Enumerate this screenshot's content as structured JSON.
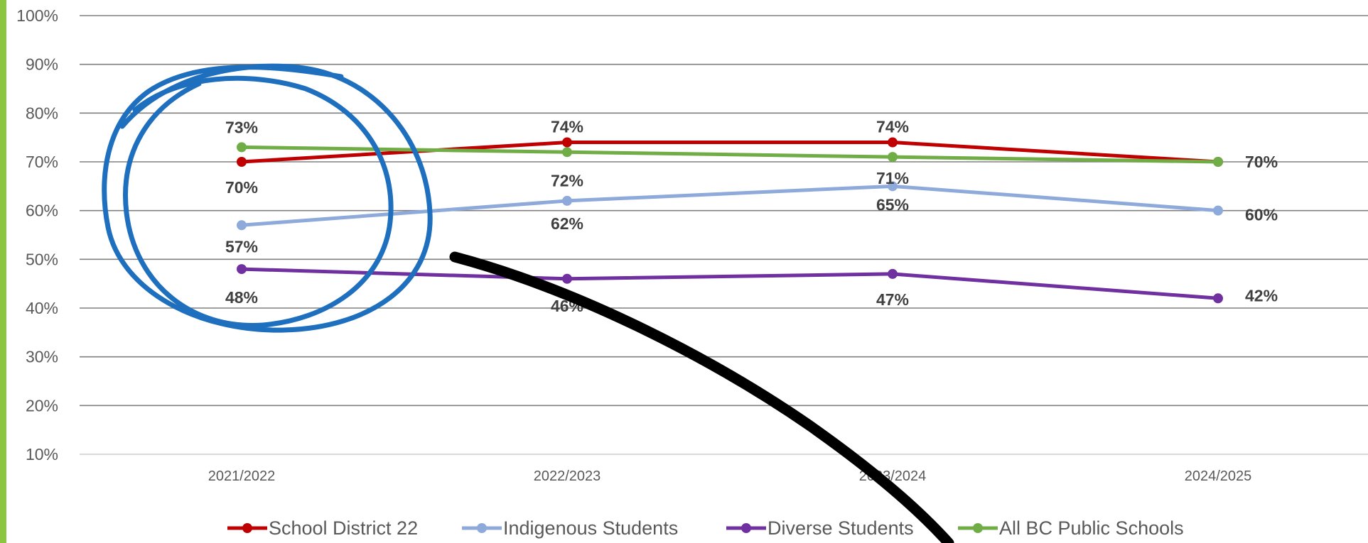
{
  "colors": {
    "accent_bar": "#8cc63f",
    "grid": "#808080",
    "pen_blue": "#1f6fbf",
    "pen_black": "#000000"
  },
  "chart_data": {
    "type": "line",
    "categories": [
      "2021/2022",
      "2022/2023",
      "2023/2024",
      "2024/2025"
    ],
    "series": [
      {
        "name": "School District 22",
        "color": "#c00000",
        "values": [
          70,
          74,
          74,
          70
        ],
        "labels": [
          "70%",
          "74%",
          "74%",
          ""
        ]
      },
      {
        "name": "Indigenous Students",
        "color": "#8eaadb",
        "values": [
          57,
          62,
          65,
          60
        ],
        "labels": [
          "57%",
          "62%",
          "65%",
          "60%"
        ]
      },
      {
        "name": "Diverse Students",
        "color": "#7030a0",
        "values": [
          48,
          46,
          47,
          42
        ],
        "labels": [
          "48%",
          "46%",
          "47%",
          "42%"
        ]
      },
      {
        "name": "All BC Public Schools",
        "color": "#70ad47",
        "values": [
          73,
          72,
          71,
          70
        ],
        "labels": [
          "73%",
          "72%",
          "71%",
          "70%"
        ]
      }
    ],
    "ylim": [
      10,
      100
    ],
    "yticks": [
      "10%",
      "20%",
      "30%",
      "40%",
      "50%",
      "60%",
      "70%",
      "80%",
      "90%",
      "100%"
    ],
    "grid": true,
    "legend_position": "bottom",
    "annotations": [
      "blue hand-drawn circle around 2021/2022 values",
      "black hand-drawn curved stroke"
    ]
  }
}
